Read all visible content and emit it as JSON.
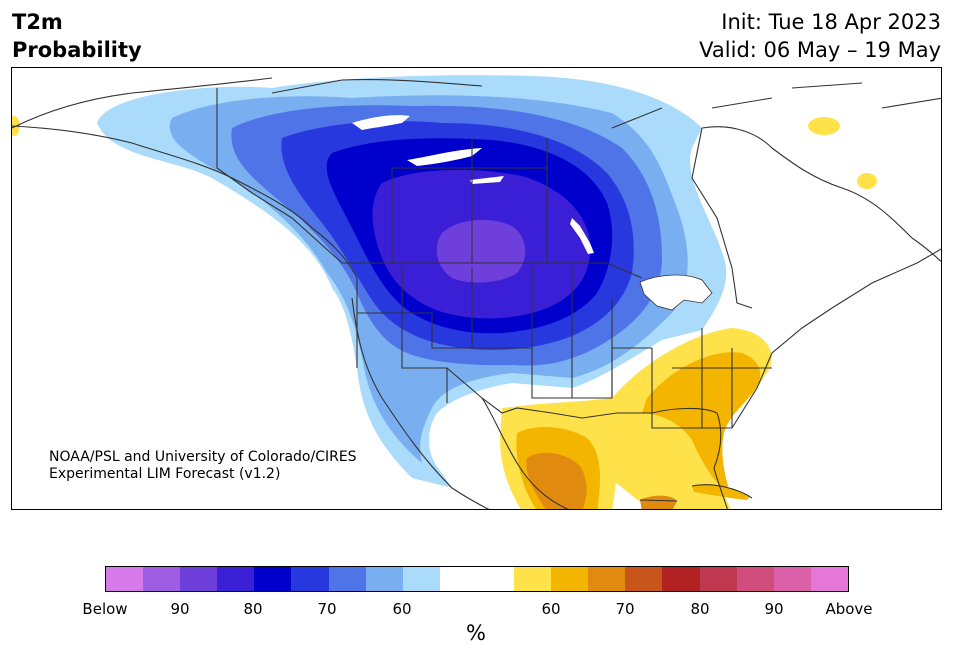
{
  "header": {
    "title_line1": "T2m",
    "title_line2": "Probability",
    "init": "Init: Tue 18 Apr 2023",
    "valid": "Valid: 06 May – 19 May"
  },
  "credit": {
    "line1": "NOAA/PSL and University of Colorado/CIRES",
    "line2": "Experimental LIM Forecast (v1.2)"
  },
  "colorbar": {
    "colors": [
      "#d57ae8",
      "#9e5de2",
      "#6f3fdc",
      "#3a1fd6",
      "#0000cc",
      "#2638de",
      "#4f74e8",
      "#79aff0",
      "#abdbfb",
      "#ffffff",
      "#ffe24a",
      "#f3b500",
      "#e08a10",
      "#c8551a",
      "#b22222",
      "#c0384f",
      "#d14d7e",
      "#dc60aa",
      "#e676d8"
    ],
    "ticks": [
      "Below",
      "90",
      "80",
      "70",
      "60",
      "60",
      "70",
      "80",
      "90",
      "Above"
    ],
    "unit": "%"
  },
  "map": {
    "colors": {
      "b60": "#abdbfb",
      "b70": "#79aff0",
      "b75": "#4f74e8",
      "b80": "#2638de",
      "b85": "#0000cc",
      "b90": "#3a1fd6",
      "b95": "#6f3fdc",
      "y60": "#ffe24a",
      "y70": "#f3b500",
      "y80": "#e08a10",
      "border": "#333333",
      "water": "#ffffff"
    }
  }
}
